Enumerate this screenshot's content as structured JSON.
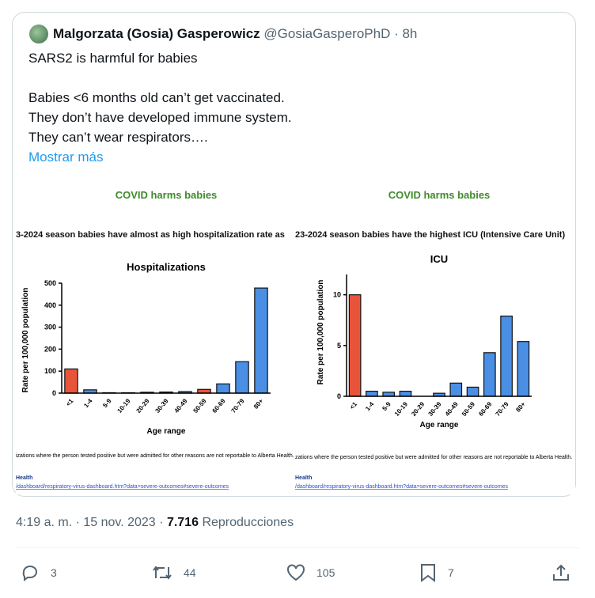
{
  "tweet": {
    "author": "Malgorzata (Gosia) Gasperowicz",
    "handle_time": "@GosiaGasperoPhD · 8h",
    "text": [
      "SARS2 is harmful for babies",
      "Babies <6 months old can’t get vaccinated.",
      "They don’t have developed immune system.",
      "They can’t wear respirators…."
    ],
    "show_more": "Mostrar más",
    "date": "4:19 a. m. · 15 nov. 2023 ·",
    "views": "7.716",
    "views_label": "Reproducciones",
    "replies": "3",
    "reposts": "44",
    "likes": "105",
    "bookmarks": "7"
  },
  "chart_data": [
    {
      "type": "bar",
      "header": "COVID harms babies",
      "subtitle": "3-2024 season babies have almost as high hospitalization rate as",
      "title": "Hospitalizations",
      "y_label": "Rate per 100,000 population",
      "x_label": "Age range",
      "categories": [
        "<1",
        "1-4",
        "5-9",
        "10-19",
        "20-29",
        "30-39",
        "40-49",
        "50-59",
        "60-69",
        "70-79",
        "80+"
      ],
      "values": [
        110,
        15,
        2,
        2,
        4,
        5,
        7,
        17,
        42,
        143,
        478
      ],
      "colors": [
        "#e8543a",
        "#4a8fe4",
        "#4a8fe4",
        "#4a8fe4",
        "#4a8fe4",
        "#4a8fe4",
        "#4a8fe4",
        "#e8543a",
        "#4a8fe4",
        "#4a8fe4",
        "#4a8fe4"
      ],
      "ylim": [
        0,
        500
      ],
      "yticks": [
        0,
        100,
        200,
        300,
        400,
        500
      ],
      "footnote": "izations where the person tested positive but were admitted for other reasons are not reportable to Alberta Health.",
      "source": "Health",
      "link": "/dashboard/respiratory-virus-dashboard.htm?data=severe-outcomes#severe-outcomes"
    },
    {
      "type": "bar",
      "header": "COVID harms babies",
      "subtitle": "23-2024 season babies have the highest ICU (Intensive Care Unit)",
      "title": "ICU",
      "y_label": "Rate per 100,000 population",
      "x_label": "Age range",
      "categories": [
        "<1",
        "1-4",
        "5-9",
        "10-19",
        "20-29",
        "30-39",
        "40-49",
        "50-59",
        "60-69",
        "70-79",
        "80+"
      ],
      "values": [
        10,
        0.5,
        0.4,
        0.5,
        0,
        0.3,
        1.3,
        0.9,
        4.3,
        7.9,
        5.4
      ],
      "colors": [
        "#e8543a",
        "#4a8fe4",
        "#4a8fe4",
        "#4a8fe4",
        "#4a8fe4",
        "#4a8fe4",
        "#4a8fe4",
        "#4a8fe4",
        "#4a8fe4",
        "#4a8fe4",
        "#4a8fe4"
      ],
      "ylim": [
        0,
        12
      ],
      "yticks": [
        0,
        5,
        10
      ],
      "footnote": "zations where the person tested positive but were admitted for other reasons are not reportable to Alberta Health.",
      "source": "Health",
      "link": "/dashboard/respiratory-virus-dashboard.htm?data=severe-outcomes#severe-outcomes"
    }
  ]
}
